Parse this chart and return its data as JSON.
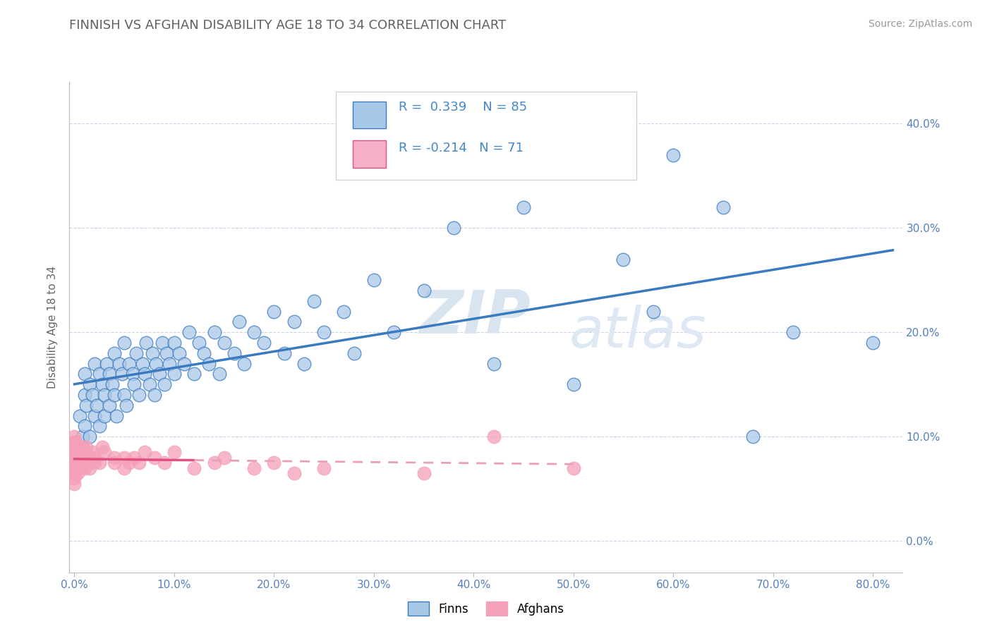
{
  "title": "FINNISH VS AFGHAN DISABILITY AGE 18 TO 34 CORRELATION CHART",
  "source": "Source: ZipAtlas.com",
  "xlabel_vals": [
    0.0,
    0.1,
    0.2,
    0.3,
    0.4,
    0.5,
    0.6,
    0.7,
    0.8
  ],
  "xlim": [
    -0.005,
    0.83
  ],
  "ylim": [
    -0.03,
    0.44
  ],
  "ylabel": "Disability Age 18 to 34",
  "R_finns": 0.339,
  "N_finns": 85,
  "R_afghans": -0.214,
  "N_afghans": 71,
  "color_finns": "#a8c8e8",
  "color_afghans": "#f4a0b8",
  "color_finns_line": "#3a7abf",
  "color_afghans_line": "#e05080",
  "color_afghans_line_dash": "#e8a0b8",
  "background_color": "#ffffff",
  "grid_color": "#c8d4e8",
  "title_color": "#606060",
  "watermark_zip": "ZIP",
  "watermark_atlas": "atlas",
  "watermark_color": "#d8e4f0",
  "legend_box_color_finns": "#a8c8e8",
  "legend_box_color_afghans": "#f4b0c4",
  "finns_x": [
    0.005,
    0.008,
    0.01,
    0.01,
    0.01,
    0.012,
    0.015,
    0.015,
    0.018,
    0.02,
    0.02,
    0.022,
    0.025,
    0.025,
    0.028,
    0.03,
    0.03,
    0.032,
    0.035,
    0.035,
    0.038,
    0.04,
    0.04,
    0.042,
    0.045,
    0.048,
    0.05,
    0.05,
    0.052,
    0.055,
    0.058,
    0.06,
    0.062,
    0.065,
    0.068,
    0.07,
    0.072,
    0.075,
    0.078,
    0.08,
    0.082,
    0.085,
    0.088,
    0.09,
    0.092,
    0.095,
    0.1,
    0.1,
    0.105,
    0.11,
    0.115,
    0.12,
    0.125,
    0.13,
    0.135,
    0.14,
    0.145,
    0.15,
    0.16,
    0.165,
    0.17,
    0.18,
    0.19,
    0.2,
    0.21,
    0.22,
    0.23,
    0.24,
    0.25,
    0.27,
    0.28,
    0.3,
    0.32,
    0.35,
    0.38,
    0.42,
    0.45,
    0.5,
    0.55,
    0.58,
    0.6,
    0.65,
    0.68,
    0.72,
    0.8
  ],
  "finns_y": [
    0.12,
    0.1,
    0.14,
    0.16,
    0.11,
    0.13,
    0.15,
    0.1,
    0.14,
    0.12,
    0.17,
    0.13,
    0.16,
    0.11,
    0.15,
    0.14,
    0.12,
    0.17,
    0.13,
    0.16,
    0.15,
    0.14,
    0.18,
    0.12,
    0.17,
    0.16,
    0.14,
    0.19,
    0.13,
    0.17,
    0.16,
    0.15,
    0.18,
    0.14,
    0.17,
    0.16,
    0.19,
    0.15,
    0.18,
    0.14,
    0.17,
    0.16,
    0.19,
    0.15,
    0.18,
    0.17,
    0.16,
    0.19,
    0.18,
    0.17,
    0.2,
    0.16,
    0.19,
    0.18,
    0.17,
    0.2,
    0.16,
    0.19,
    0.18,
    0.21,
    0.17,
    0.2,
    0.19,
    0.22,
    0.18,
    0.21,
    0.17,
    0.23,
    0.2,
    0.22,
    0.18,
    0.25,
    0.2,
    0.24,
    0.3,
    0.17,
    0.32,
    0.15,
    0.27,
    0.22,
    0.37,
    0.32,
    0.1,
    0.2,
    0.19
  ],
  "afghans_x": [
    0.0,
    0.0,
    0.0,
    0.0,
    0.0,
    0.0,
    0.0,
    0.0,
    0.0,
    0.0,
    0.0,
    0.0,
    0.001,
    0.001,
    0.001,
    0.001,
    0.001,
    0.002,
    0.002,
    0.002,
    0.002,
    0.003,
    0.003,
    0.003,
    0.003,
    0.004,
    0.004,
    0.004,
    0.005,
    0.005,
    0.006,
    0.006,
    0.007,
    0.007,
    0.008,
    0.008,
    0.009,
    0.01,
    0.01,
    0.01,
    0.012,
    0.012,
    0.015,
    0.015,
    0.018,
    0.02,
    0.02,
    0.025,
    0.028,
    0.03,
    0.04,
    0.04,
    0.05,
    0.05,
    0.055,
    0.06,
    0.065,
    0.07,
    0.08,
    0.09,
    0.1,
    0.12,
    0.14,
    0.15,
    0.18,
    0.2,
    0.22,
    0.25,
    0.35,
    0.42,
    0.5
  ],
  "afghans_y": [
    0.07,
    0.075,
    0.08,
    0.085,
    0.09,
    0.095,
    0.1,
    0.06,
    0.065,
    0.055,
    0.085,
    0.075,
    0.07,
    0.08,
    0.09,
    0.065,
    0.095,
    0.075,
    0.085,
    0.07,
    0.09,
    0.08,
    0.07,
    0.085,
    0.065,
    0.08,
    0.075,
    0.09,
    0.07,
    0.085,
    0.08,
    0.075,
    0.085,
    0.07,
    0.075,
    0.09,
    0.08,
    0.085,
    0.07,
    0.08,
    0.075,
    0.09,
    0.08,
    0.07,
    0.085,
    0.075,
    0.08,
    0.075,
    0.09,
    0.085,
    0.08,
    0.075,
    0.08,
    0.07,
    0.075,
    0.08,
    0.075,
    0.085,
    0.08,
    0.075,
    0.085,
    0.07,
    0.075,
    0.08,
    0.07,
    0.075,
    0.065,
    0.07,
    0.065,
    0.1,
    0.07
  ]
}
